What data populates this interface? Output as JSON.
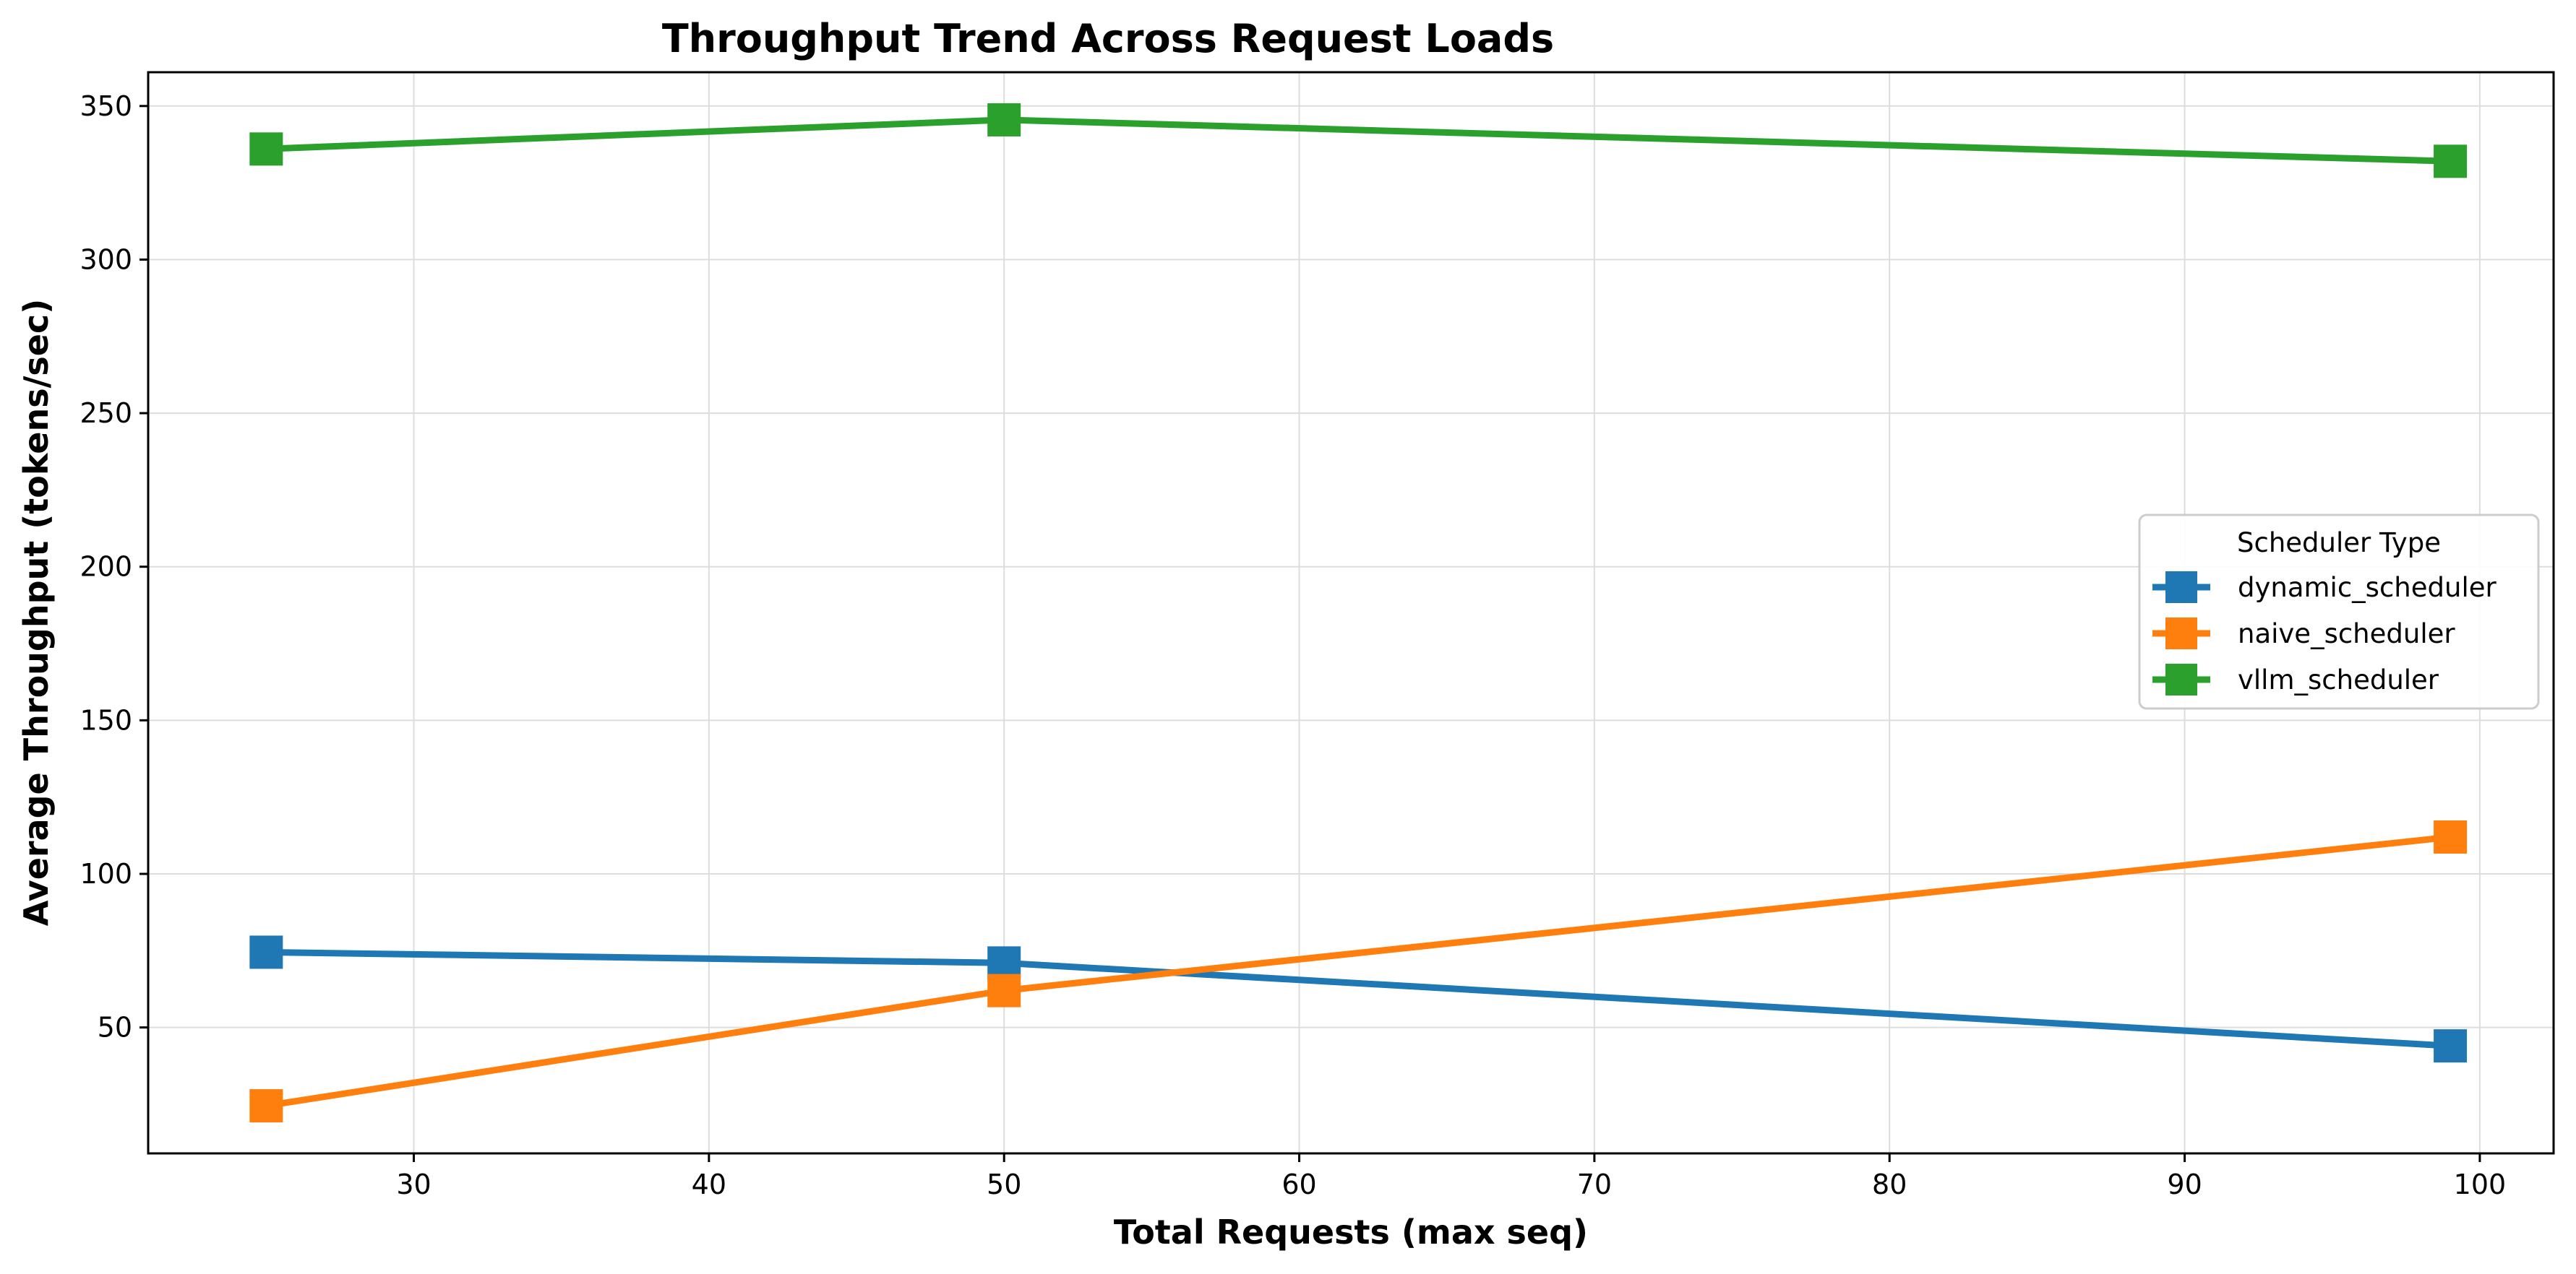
{
  "chart_data": {
    "type": "line",
    "title": "Throughput Trend Across Request Loads",
    "xlabel": "Total Requests (max seq)",
    "ylabel": "Average Throughput (tokens/sec)",
    "xlim": [
      21,
      102.5
    ],
    "ylim": [
      9,
      361
    ],
    "xticks": [
      30,
      40,
      50,
      60,
      70,
      80,
      90,
      100
    ],
    "yticks": [
      50,
      100,
      150,
      200,
      250,
      300,
      350
    ],
    "grid": true,
    "legend": {
      "title": "Scheduler Type",
      "placement": "center-right"
    },
    "x": [
      25,
      50,
      99
    ],
    "series": [
      {
        "name": "dynamic_scheduler",
        "values": [
          74.5,
          71,
          44
        ],
        "color": "#1f77b4",
        "marker": "square"
      },
      {
        "name": "naive_scheduler",
        "values": [
          24.5,
          62,
          112
        ],
        "color": "#ff7f0e",
        "marker": "square"
      },
      {
        "name": "vllm_scheduler",
        "values": [
          336,
          345.5,
          332
        ],
        "color": "#2ca02c",
        "marker": "square"
      }
    ]
  }
}
